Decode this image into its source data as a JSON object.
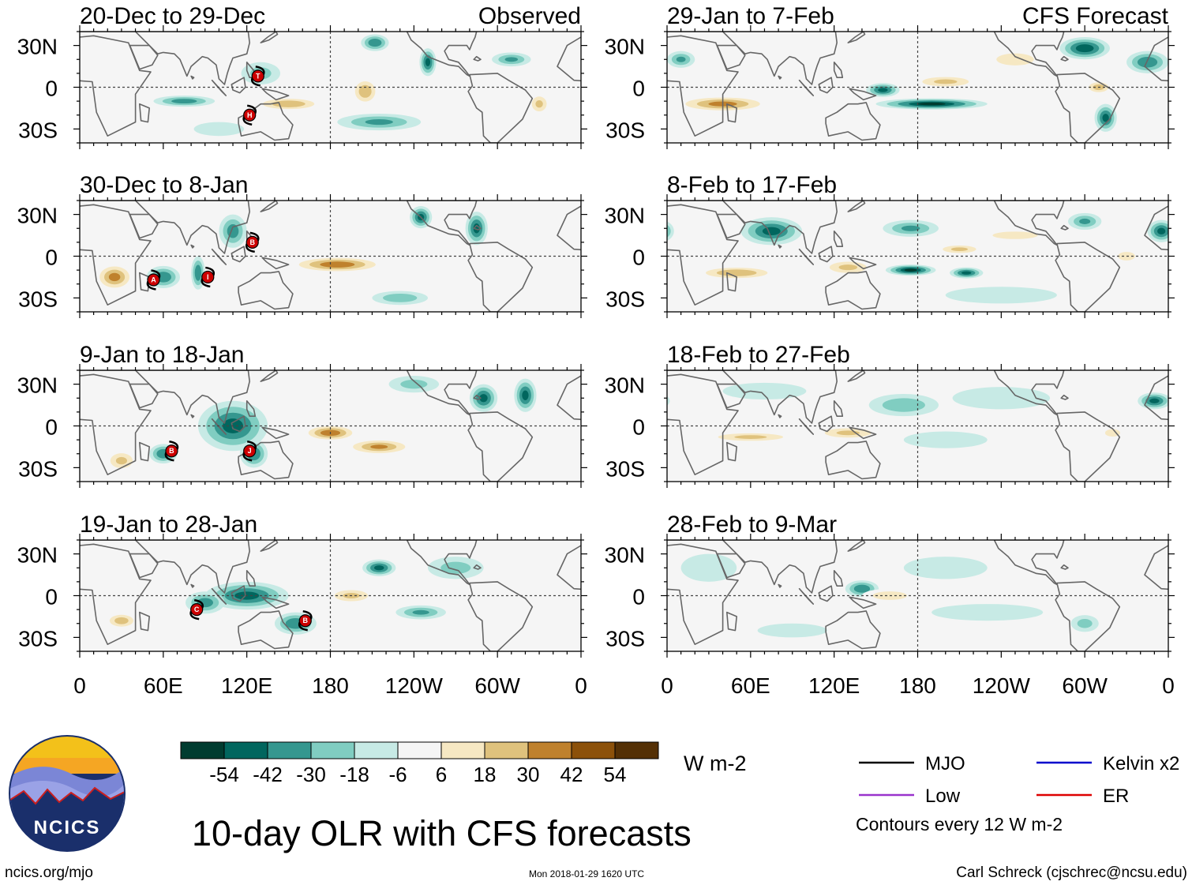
{
  "chart_data": {
    "type": "heatmap",
    "title": "10-day OLR with CFS forecasts",
    "units": "W m-2",
    "x_ticks": [
      "0",
      "60E",
      "120E",
      "180",
      "120W",
      "60W",
      "0"
    ],
    "y_ticks": [
      "30N",
      "0",
      "30S"
    ],
    "lat_range": [
      -40,
      40
    ],
    "lon_range": [
      0,
      360
    ],
    "columns": [
      {
        "label": "Observed",
        "panels": [
          {
            "period": "20-Dec to 29-Dec",
            "features": [
              {
                "lon": 75,
                "lat": -10,
                "v": -35,
                "rx": 22,
                "ry": 4
              },
              {
                "lon": 150,
                "lat": -12,
                "v": 40,
                "rx": 25,
                "ry": 5
              },
              {
                "lon": 205,
                "lat": -3,
                "v": 38,
                "rx": 10,
                "ry": 10
              },
              {
                "lon": 215,
                "lat": -25,
                "v": -30,
                "rx": 30,
                "ry": 6
              },
              {
                "lon": 250,
                "lat": 18,
                "v": -45,
                "rx": 6,
                "ry": 10
              },
              {
                "lon": 212,
                "lat": 32,
                "v": -40,
                "rx": 10,
                "ry": 6
              },
              {
                "lon": 310,
                "lat": 20,
                "v": -30,
                "rx": 14,
                "ry": 5
              },
              {
                "lon": 330,
                "lat": -12,
                "v": 30,
                "rx": 8,
                "ry": 8
              },
              {
                "lon": 60,
                "lat": 25,
                "v": 15,
                "rx": 30,
                "ry": 10
              },
              {
                "lon": 130,
                "lat": 10,
                "v": -20,
                "rx": 14,
                "ry": 8
              },
              {
                "lon": 100,
                "lat": -30,
                "v": -14,
                "rx": 18,
                "ry": 5
              }
            ],
            "cyclones": [
              {
                "label": "T",
                "lon": 128,
                "lat": 8
              },
              {
                "label": "H",
                "lon": 122,
                "lat": -20
              }
            ]
          },
          {
            "period": "30-Dec to 8-Jan",
            "features": [
              {
                "lon": 25,
                "lat": -15,
                "v": 45,
                "rx": 14,
                "ry": 10
              },
              {
                "lon": 60,
                "lat": -15,
                "v": -40,
                "rx": 12,
                "ry": 8
              },
              {
                "lon": 85,
                "lat": -12,
                "v": -40,
                "rx": 5,
                "ry": 12
              },
              {
                "lon": 110,
                "lat": 18,
                "v": -35,
                "rx": 10,
                "ry": 12
              },
              {
                "lon": 185,
                "lat": -6,
                "v": 50,
                "rx": 35,
                "ry": 6
              },
              {
                "lon": 245,
                "lat": 28,
                "v": -45,
                "rx": 8,
                "ry": 8
              },
              {
                "lon": 285,
                "lat": 20,
                "v": -45,
                "rx": 8,
                "ry": 12
              },
              {
                "lon": 230,
                "lat": -30,
                "v": -25,
                "rx": 20,
                "ry": 5
              },
              {
                "lon": 200,
                "lat": 18,
                "v": 15,
                "rx": 35,
                "ry": 8
              },
              {
                "lon": 30,
                "lat": 20,
                "v": 14,
                "rx": 20,
                "ry": 10
              }
            ],
            "cyclones": [
              {
                "label": "B",
                "lon": 124,
                "lat": 10
              },
              {
                "label": "A",
                "lon": 53,
                "lat": -17
              },
              {
                "label": "I",
                "lon": 92,
                "lat": -15
              }
            ]
          },
          {
            "period": "9-Jan to 18-Jan",
            "features": [
              {
                "lon": 110,
                "lat": 0,
                "v": -45,
                "rx": 25,
                "ry": 18
              },
              {
                "lon": 125,
                "lat": -20,
                "v": -40,
                "rx": 10,
                "ry": 10
              },
              {
                "lon": 60,
                "lat": -20,
                "v": -40,
                "rx": 10,
                "ry": 7
              },
              {
                "lon": 180,
                "lat": -5,
                "v": 50,
                "rx": 20,
                "ry": 6
              },
              {
                "lon": 215,
                "lat": -15,
                "v": 42,
                "rx": 25,
                "ry": 6
              },
              {
                "lon": 290,
                "lat": 20,
                "v": -45,
                "rx": 10,
                "ry": 10
              },
              {
                "lon": 320,
                "lat": 22,
                "v": -45,
                "rx": 8,
                "ry": 12
              },
              {
                "lon": 30,
                "lat": -25,
                "v": 30,
                "rx": 12,
                "ry": 8
              },
              {
                "lon": 240,
                "lat": 30,
                "v": -20,
                "rx": 18,
                "ry": 6
              },
              {
                "lon": 30,
                "lat": 20,
                "v": 14,
                "rx": 25,
                "ry": 8
              }
            ],
            "cyclones": [
              {
                "label": "B",
                "lon": 66,
                "lat": -18
              },
              {
                "label": "J",
                "lon": 122,
                "lat": -18
              }
            ]
          },
          {
            "period": "19-Jan to 28-Jan",
            "features": [
              {
                "lon": 120,
                "lat": 0,
                "v": -45,
                "rx": 30,
                "ry": 10
              },
              {
                "lon": 155,
                "lat": -20,
                "v": -40,
                "rx": 15,
                "ry": 8
              },
              {
                "lon": 90,
                "lat": -5,
                "v": -35,
                "rx": 14,
                "ry": 8
              },
              {
                "lon": 195,
                "lat": 0,
                "v": 30,
                "rx": 18,
                "ry": 6
              },
              {
                "lon": 30,
                "lat": -18,
                "v": 35,
                "rx": 12,
                "ry": 6
              },
              {
                "lon": 215,
                "lat": 20,
                "v": -45,
                "rx": 12,
                "ry": 6
              },
              {
                "lon": 245,
                "lat": -12,
                "v": -30,
                "rx": 18,
                "ry": 5
              },
              {
                "lon": 270,
                "lat": 20,
                "v": -20,
                "rx": 20,
                "ry": 8
              },
              {
                "lon": 60,
                "lat": 15,
                "v": 14,
                "rx": 25,
                "ry": 10
              }
            ],
            "cyclones": [
              {
                "label": "C",
                "lon": 84,
                "lat": -10
              },
              {
                "label": "B",
                "lon": 162,
                "lat": -18
              }
            ]
          }
        ]
      },
      {
        "label": "CFS Forecast",
        "panels": [
          {
            "period": "29-Jan to 7-Feb",
            "features": [
              {
                "lon": 40,
                "lat": -12,
                "v": 45,
                "rx": 35,
                "ry": 6
              },
              {
                "lon": 190,
                "lat": -12,
                "v": -55,
                "rx": 40,
                "ry": 4
              },
              {
                "lon": 155,
                "lat": -2,
                "v": -45,
                "rx": 12,
                "ry": 5
              },
              {
                "lon": 80,
                "lat": 20,
                "v": 15,
                "rx": 30,
                "ry": 10
              },
              {
                "lon": 130,
                "lat": 20,
                "v": 14,
                "rx": 25,
                "ry": 10
              },
              {
                "lon": 200,
                "lat": 4,
                "v": 30,
                "rx": 25,
                "ry": 5
              },
              {
                "lon": 300,
                "lat": 28,
                "v": -50,
                "rx": 18,
                "ry": 8
              },
              {
                "lon": 345,
                "lat": 18,
                "v": -40,
                "rx": 15,
                "ry": 8
              },
              {
                "lon": 315,
                "lat": -22,
                "v": -45,
                "rx": 8,
                "ry": 10
              },
              {
                "lon": 310,
                "lat": 0,
                "v": 35,
                "rx": 10,
                "ry": 5
              },
              {
                "lon": 10,
                "lat": 20,
                "v": -30,
                "rx": 10,
                "ry": 6
              },
              {
                "lon": 250,
                "lat": 20,
                "v": 20,
                "rx": 25,
                "ry": 8
              }
            ],
            "cyclones": []
          },
          {
            "period": "8-Feb to 17-Feb",
            "features": [
              {
                "lon": 75,
                "lat": 18,
                "v": -45,
                "rx": 22,
                "ry": 10
              },
              {
                "lon": 50,
                "lat": -12,
                "v": 40,
                "rx": 30,
                "ry": 5
              },
              {
                "lon": 130,
                "lat": -8,
                "v": 30,
                "rx": 20,
                "ry": 6
              },
              {
                "lon": 175,
                "lat": -10,
                "v": -55,
                "rx": 18,
                "ry": 4
              },
              {
                "lon": 215,
                "lat": -12,
                "v": -45,
                "rx": 12,
                "ry": 4
              },
              {
                "lon": 175,
                "lat": 20,
                "v": -30,
                "rx": 20,
                "ry": 6
              },
              {
                "lon": 210,
                "lat": 5,
                "v": 30,
                "rx": 18,
                "ry": 4
              },
              {
                "lon": 250,
                "lat": 15,
                "v": 20,
                "rx": 30,
                "ry": 5
              },
              {
                "lon": 355,
                "lat": 18,
                "v": -45,
                "rx": 10,
                "ry": 8
              },
              {
                "lon": 300,
                "lat": 25,
                "v": -30,
                "rx": 12,
                "ry": 6
              },
              {
                "lon": 330,
                "lat": 0,
                "v": 25,
                "rx": 10,
                "ry": 5
              },
              {
                "lon": 240,
                "lat": -28,
                "v": -14,
                "rx": 40,
                "ry": 6
              }
            ],
            "cyclones": []
          },
          {
            "period": "18-Feb to 27-Feb",
            "features": [
              {
                "lon": 60,
                "lat": -8,
                "v": 30,
                "rx": 35,
                "ry": 4
              },
              {
                "lon": 130,
                "lat": -5,
                "v": 30,
                "rx": 25,
                "ry": 5
              },
              {
                "lon": 170,
                "lat": 15,
                "v": -25,
                "rx": 25,
                "ry": 8
              },
              {
                "lon": 240,
                "lat": 20,
                "v": -14,
                "rx": 35,
                "ry": 8
              },
              {
                "lon": 350,
                "lat": 18,
                "v": -45,
                "rx": 12,
                "ry": 6
              },
              {
                "lon": 320,
                "lat": -5,
                "v": 20,
                "rx": 10,
                "ry": 5
              },
              {
                "lon": 200,
                "lat": -10,
                "v": -14,
                "rx": 30,
                "ry": 6
              },
              {
                "lon": 70,
                "lat": 25,
                "v": -14,
                "rx": 30,
                "ry": 6
              }
            ],
            "cyclones": []
          },
          {
            "period": "28-Feb to 9-Mar",
            "features": [
              {
                "lon": 140,
                "lat": 5,
                "v": -40,
                "rx": 12,
                "ry": 6
              },
              {
                "lon": 160,
                "lat": 0,
                "v": 25,
                "rx": 20,
                "ry": 5
              },
              {
                "lon": 50,
                "lat": 0,
                "v": 14,
                "rx": 30,
                "ry": 5
              },
              {
                "lon": 30,
                "lat": 20,
                "v": -14,
                "rx": 20,
                "ry": 10
              },
              {
                "lon": 230,
                "lat": -12,
                "v": -14,
                "rx": 40,
                "ry": 6
              },
              {
                "lon": 200,
                "lat": 20,
                "v": -14,
                "rx": 30,
                "ry": 8
              },
              {
                "lon": 300,
                "lat": -20,
                "v": -20,
                "rx": 10,
                "ry": 6
              },
              {
                "lon": 90,
                "lat": -25,
                "v": -14,
                "rx": 25,
                "ry": 5
              }
            ],
            "cyclones": []
          }
        ]
      }
    ],
    "colorbar": {
      "labels": [
        "-54",
        "-42",
        "-30",
        "-18",
        "-6",
        "6",
        "18",
        "30",
        "42",
        "54"
      ],
      "bounds": [
        -60,
        -48,
        -36,
        -24,
        -12,
        0,
        12,
        24,
        36,
        48,
        60
      ],
      "colors": [
        "#003c30",
        "#01665e",
        "#35978f",
        "#80cdc1",
        "#c7eae5",
        "#f5f5f5",
        "#f6e8c3",
        "#dfc27d",
        "#bf812d",
        "#8c510a",
        "#543005"
      ]
    },
    "legend": [
      {
        "label": "MJO",
        "color": "#000000"
      },
      {
        "label": "Kelvin x2",
        "color": "#0000cc"
      },
      {
        "label": "Low",
        "color": "#9933cc"
      },
      {
        "label": "ER",
        "color": "#dd0000"
      }
    ],
    "contour_note": "Contours every 12 W m-2"
  },
  "logo": {
    "text": "NCICS"
  },
  "footer": {
    "left": "ncics.org/mjo",
    "center": "Mon 2018-01-29 1620 UTC",
    "right": "Carl Schreck (cjschrec@ncsu.edu)"
  },
  "colors": {
    "land": "#666666",
    "cyclone": "#cc0000",
    "logo_ring": "#1a2f6b"
  }
}
